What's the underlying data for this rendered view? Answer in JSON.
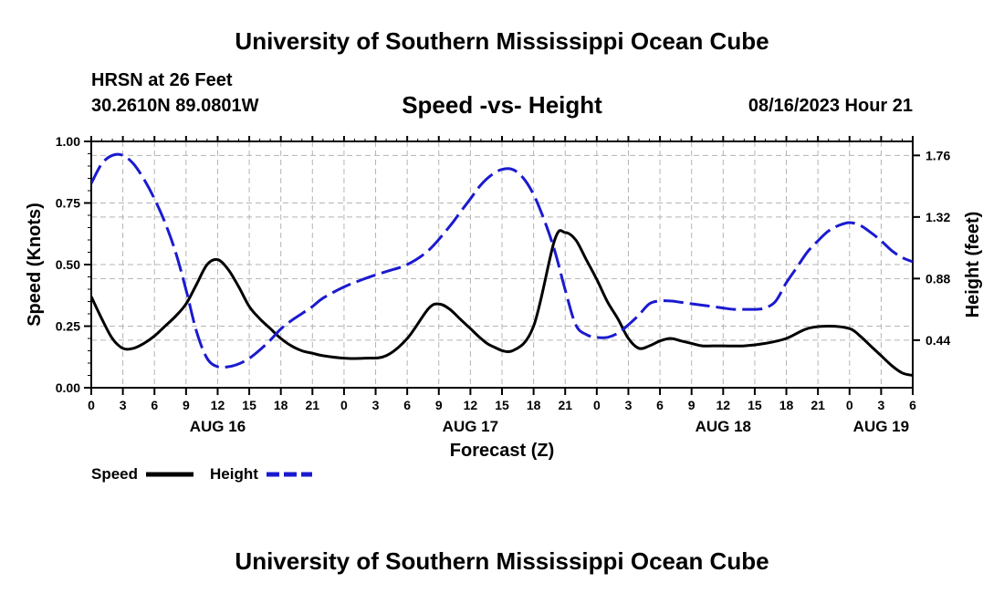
{
  "header": {
    "main_title": "University of Southern Mississippi Ocean Cube",
    "station": "HRSN at 26 Feet",
    "coords": "30.2610N  89.0801W",
    "chart_title": "Speed -vs- Height",
    "datetime": "08/16/2023 Hour 21"
  },
  "footer": {
    "title": "University of Southern Mississippi Ocean Cube"
  },
  "colors": {
    "speed": "#000000",
    "height": "#1a1ad0",
    "grid": "#b4b4b4"
  },
  "chart_data": {
    "type": "line",
    "title": "Speed -vs- Height",
    "xlabel": "Forecast (Z)",
    "ylabel": "Speed (Knots)",
    "ylabel_right": "Height (feet)",
    "x_unit": "forecast hour (0 = Aug 16 00Z)",
    "xlim": [
      0,
      78
    ],
    "x_ticks": [
      0,
      3,
      6,
      9,
      12,
      15,
      18,
      21,
      24,
      27,
      30,
      33,
      36,
      39,
      42,
      45,
      48,
      51,
      54,
      57,
      60,
      63,
      66,
      69,
      72,
      75,
      78
    ],
    "x_tick_labels": [
      "0",
      "3",
      "6",
      "9",
      "12",
      "15",
      "18",
      "21",
      "0",
      "3",
      "6",
      "9",
      "12",
      "15",
      "18",
      "21",
      "0",
      "3",
      "6",
      "9",
      "12",
      "15",
      "18",
      "21",
      "0",
      "3",
      "6"
    ],
    "day_labels": [
      {
        "x": 12,
        "label": "AUG 16"
      },
      {
        "x": 36,
        "label": "AUG 17"
      },
      {
        "x": 60,
        "label": "AUG 18"
      },
      {
        "x": 75,
        "label": "AUG 19"
      }
    ],
    "ylim": [
      0,
      1.0
    ],
    "y_ticks": [
      0,
      0.25,
      0.5,
      0.75,
      1.0
    ],
    "y_tick_labels": [
      "0.00",
      "0.25",
      "0.50",
      "0.75",
      "1.00"
    ],
    "ylim_right": [
      0.1,
      1.86
    ],
    "y_ticks_right": [
      0.44,
      0.88,
      1.32,
      1.76
    ],
    "y_tick_labels_right": [
      "0.44",
      "0.88",
      "1.32",
      "1.76"
    ],
    "grid": true,
    "series": [
      {
        "name": "Speed",
        "axis": "left",
        "style": "solid",
        "x": [
          0,
          1,
          2,
          3,
          4,
          5,
          6,
          7,
          8,
          9,
          10,
          11,
          12,
          13,
          14,
          15,
          16,
          17,
          18,
          19,
          20,
          21,
          22,
          24,
          26,
          28,
          30,
          32,
          33,
          34,
          35,
          36,
          37,
          38,
          40,
          42,
          44,
          45,
          46,
          47,
          48,
          49,
          50,
          51,
          52,
          53,
          54,
          55,
          56,
          57,
          58,
          59,
          60,
          62,
          64,
          66,
          68,
          70,
          72,
          73,
          74,
          75,
          76,
          77,
          78
        ],
        "values": [
          0.37,
          0.28,
          0.2,
          0.16,
          0.16,
          0.18,
          0.21,
          0.25,
          0.29,
          0.34,
          0.42,
          0.5,
          0.52,
          0.48,
          0.41,
          0.33,
          0.28,
          0.24,
          0.2,
          0.17,
          0.15,
          0.14,
          0.13,
          0.12,
          0.12,
          0.13,
          0.2,
          0.32,
          0.34,
          0.32,
          0.28,
          0.24,
          0.2,
          0.17,
          0.15,
          0.25,
          0.6,
          0.63,
          0.6,
          0.52,
          0.44,
          0.35,
          0.28,
          0.2,
          0.16,
          0.17,
          0.19,
          0.2,
          0.19,
          0.18,
          0.17,
          0.17,
          0.17,
          0.17,
          0.18,
          0.2,
          0.24,
          0.25,
          0.24,
          0.21,
          0.17,
          0.13,
          0.09,
          0.06,
          0.05
        ]
      },
      {
        "name": "Height",
        "axis": "right",
        "style": "dashed",
        "x": [
          0,
          1,
          2,
          3,
          4,
          5,
          6,
          7,
          8,
          9,
          10,
          11,
          12,
          13,
          14,
          15,
          16,
          17,
          18,
          19,
          20,
          21,
          22,
          24,
          26,
          28,
          30,
          32,
          34,
          35,
          36,
          37,
          38,
          39,
          40,
          41,
          42,
          43,
          44,
          45,
          46,
          47,
          48,
          49,
          50,
          51,
          52,
          53,
          54,
          55,
          56,
          57,
          58,
          59,
          60,
          61,
          62,
          63,
          64,
          65,
          66,
          67,
          68,
          69,
          70,
          71,
          72,
          73,
          74,
          75,
          76,
          77,
          78
        ],
        "values": [
          1.56,
          1.7,
          1.76,
          1.76,
          1.7,
          1.59,
          1.45,
          1.28,
          1.07,
          0.8,
          0.5,
          0.31,
          0.25,
          0.25,
          0.27,
          0.31,
          0.37,
          0.44,
          0.52,
          0.58,
          0.63,
          0.68,
          0.74,
          0.82,
          0.88,
          0.93,
          0.98,
          1.08,
          1.25,
          1.35,
          1.45,
          1.55,
          1.62,
          1.66,
          1.66,
          1.6,
          1.48,
          1.3,
          1.08,
          0.8,
          0.55,
          0.48,
          0.46,
          0.46,
          0.49,
          0.55,
          0.62,
          0.7,
          0.72,
          0.72,
          0.71,
          0.7,
          0.69,
          0.68,
          0.67,
          0.66,
          0.66,
          0.66,
          0.67,
          0.72,
          0.85,
          0.96,
          1.07,
          1.15,
          1.22,
          1.26,
          1.28,
          1.26,
          1.21,
          1.15,
          1.08,
          1.03,
          1.0
        ]
      }
    ],
    "legend": [
      {
        "label": "Speed",
        "style": "solid"
      },
      {
        "label": "Height",
        "style": "dashed"
      }
    ],
    "legend_position": "bottom-left"
  }
}
